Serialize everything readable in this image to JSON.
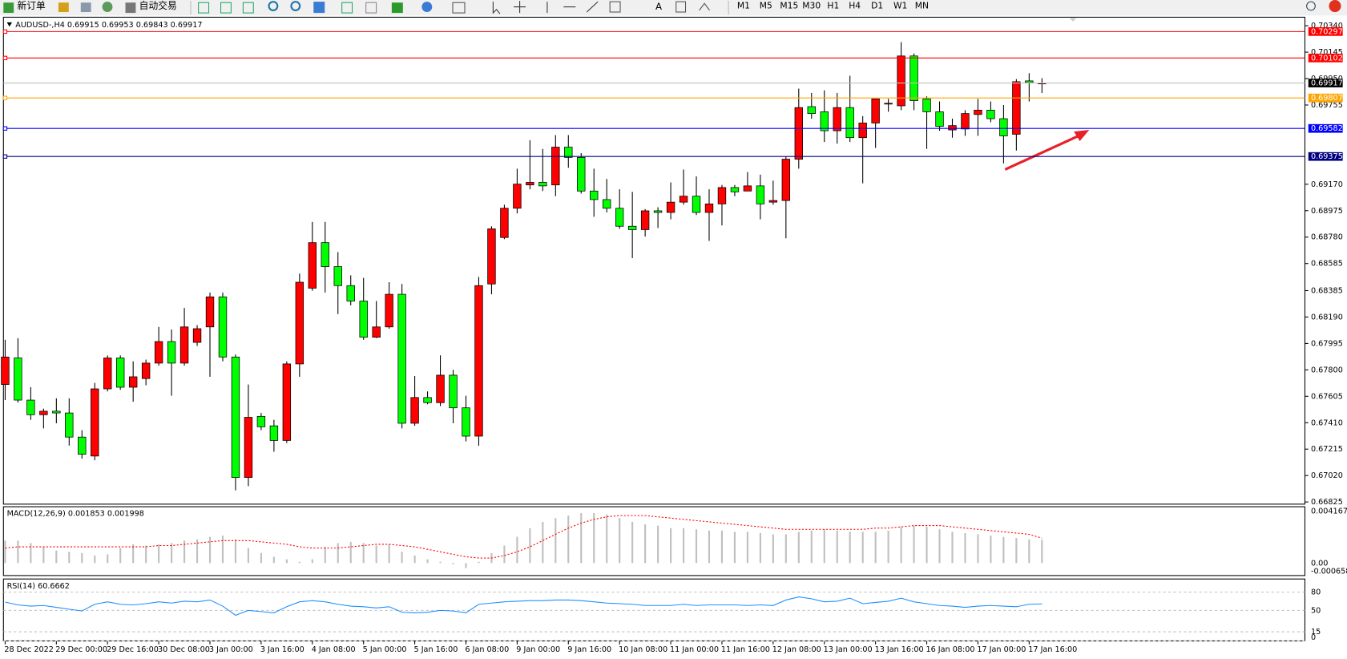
{
  "toolbar": {
    "new_order": "新订单",
    "auto_trading": "自动交易",
    "timeframes": [
      "M1",
      "M5",
      "M15",
      "M30",
      "H1",
      "H4",
      "D1",
      "W1",
      "MN"
    ]
  },
  "chart_data": [
    {
      "type": "candlestick",
      "title": "AUDUSD-,H4 0.69915 0.69953 0.69843 0.69917",
      "categories": [
        "28 Dec 2022",
        null,
        null,
        null,
        "29 Dec 00:00",
        null,
        null,
        null,
        "29 Dec 16:00",
        null,
        null,
        null,
        "30 Dec 08:00",
        null,
        null,
        null,
        "3 Jan 00:00",
        null,
        null,
        null,
        "3 Jan 16:00",
        null,
        null,
        null,
        "4 Jan 08:00",
        null,
        null,
        null,
        "5 Jan 00:00",
        null,
        null,
        null,
        "5 Jan 16:00",
        null,
        null,
        null,
        "6 Jan 08:00",
        null,
        null,
        null,
        "9 Jan 00:00",
        null,
        null,
        null,
        "9 Jan 16:00",
        null,
        null,
        null,
        "10 Jan 08:00",
        null,
        null,
        null,
        "11 Jan 00:00",
        null,
        null,
        null,
        "11 Jan 16:00",
        null,
        null,
        null,
        "12 Jan 08:00",
        null,
        null,
        null,
        "13 Jan 00:00",
        null,
        null,
        null,
        "13 Jan 16:00",
        null,
        null,
        null,
        "16 Jan 08:00",
        null,
        null,
        null,
        "17 Jan 00:00",
        null,
        null,
        null,
        "17 Jan 16:00",
        null
      ],
      "open": [
        0.67692,
        0.67888,
        0.67577,
        0.67469,
        0.67495,
        0.67482,
        0.67304,
        0.67164,
        0.6766,
        0.67888,
        0.67672,
        0.67736,
        0.6785,
        0.68009,
        0.6785,
        0.68003,
        0.68117,
        0.68339,
        0.67895,
        0.67006,
        0.67457,
        0.67387,
        0.67279,
        0.67844,
        0.68403,
        0.68739,
        0.68562,
        0.68422,
        0.68308,
        0.68041,
        0.68117,
        0.68358,
        0.67406,
        0.67596,
        0.67558,
        0.67761,
        0.6752,
        0.67311,
        0.68434,
        0.68777,
        0.68993,
        0.69165,
        0.69184,
        0.69165,
        0.69444,
        0.69368,
        0.6912,
        0.69057,
        0.68993,
        0.6886,
        0.68835,
        0.68974,
        0.68962,
        0.69038,
        0.69082,
        0.68962,
        0.69025,
        0.69146,
        0.6912,
        0.69158,
        0.69038,
        0.6905,
        0.69355,
        0.69743,
        0.69705,
        0.69565,
        0.69736,
        0.69514,
        0.69622,
        0.69762,
        0.69749,
        0.70117,
        0.698,
        0.69705,
        0.69571,
        0.69578,
        0.69685,
        0.69717,
        0.69654,
        0.69539,
        0.69933,
        0.69915
      ],
      "high": [
        0.68022,
        0.68034,
        0.67672,
        0.67514,
        0.6759,
        0.6759,
        0.67355,
        0.67704,
        0.67907,
        0.67907,
        0.67863,
        0.67876,
        0.68117,
        0.68098,
        0.68257,
        0.6813,
        0.68371,
        0.68371,
        0.67914,
        0.67692,
        0.67482,
        0.67431,
        0.67863,
        0.68511,
        0.68892,
        0.68892,
        0.68669,
        0.68498,
        0.68479,
        0.68308,
        0.68447,
        0.68434,
        0.67755,
        0.67641,
        0.67907,
        0.678,
        0.67609,
        0.68486,
        0.6886,
        0.69019,
        0.69285,
        0.69495,
        0.69431,
        0.69533,
        0.69533,
        0.694,
        0.69285,
        0.69209,
        0.69133,
        0.69114,
        0.68987,
        0.69,
        0.69184,
        0.69279,
        0.69228,
        0.69133,
        0.69165,
        0.69165,
        0.6926,
        0.69241,
        0.69197,
        0.69374,
        0.69876,
        0.69844,
        0.69863,
        0.69844,
        0.69971,
        0.69673,
        0.698,
        0.698,
        0.70219,
        0.70136,
        0.69819,
        0.69781,
        0.69654,
        0.69717,
        0.698,
        0.69781,
        0.69755,
        0.69946,
        0.6999,
        0.69953
      ],
      "low": [
        0.67577,
        0.67558,
        0.67431,
        0.67368,
        0.67406,
        0.67241,
        0.67145,
        0.67133,
        0.67641,
        0.67653,
        0.67565,
        0.67686,
        0.67831,
        0.67609,
        0.67831,
        0.67977,
        0.67749,
        0.67863,
        0.66911,
        0.66942,
        0.67355,
        0.67196,
        0.6726,
        0.67749,
        0.68384,
        0.68371,
        0.68212,
        0.68276,
        0.68022,
        0.68034,
        0.68104,
        0.67368,
        0.67387,
        0.67546,
        0.67533,
        0.67406,
        0.67272,
        0.67241,
        0.68358,
        0.68765,
        0.68955,
        0.69133,
        0.6912,
        0.69082,
        0.69292,
        0.69101,
        0.6893,
        0.68962,
        0.68841,
        0.68625,
        0.68784,
        0.68847,
        0.68911,
        0.69019,
        0.68943,
        0.68752,
        0.68866,
        0.69082,
        0.6912,
        0.68911,
        0.69019,
        0.68771,
        0.69285,
        0.69654,
        0.69482,
        0.6947,
        0.69482,
        0.69177,
        0.69438,
        0.69705,
        0.69717,
        0.69717,
        0.69431,
        0.69565,
        0.69514,
        0.69527,
        0.69527,
        0.69628,
        0.69324,
        0.69419,
        0.69781,
        0.69843
      ],
      "close": [
        0.67895,
        0.67577,
        0.67469,
        0.67495,
        0.67482,
        0.67304,
        0.67177,
        0.6766,
        0.67888,
        0.67672,
        0.67749,
        0.6785,
        0.68009,
        0.6785,
        0.68117,
        0.68104,
        0.68339,
        0.67895,
        0.67006,
        0.6745,
        0.6738,
        0.67279,
        0.67844,
        0.68447,
        0.68739,
        0.68562,
        0.68422,
        0.68308,
        0.68041,
        0.68117,
        0.68358,
        0.67406,
        0.67596,
        0.67558,
        0.67761,
        0.6752,
        0.67311,
        0.68422,
        0.68841,
        0.68993,
        0.69171,
        0.69184,
        0.69158,
        0.69444,
        0.69368,
        0.6912,
        0.69057,
        0.68993,
        0.6886,
        0.68835,
        0.68974,
        0.68962,
        0.69038,
        0.69082,
        0.68962,
        0.69025,
        0.69146,
        0.69114,
        0.69158,
        0.69025,
        0.6905,
        0.69355,
        0.69736,
        0.69692,
        0.69565,
        0.69736,
        0.69514,
        0.69622,
        0.698,
        0.69768,
        0.70117,
        0.69787,
        0.69705,
        0.69597,
        0.69603,
        0.69692,
        0.69717,
        0.69654,
        0.69527,
        0.69927,
        0.6992,
        0.69917
      ],
      "up_color": "#ff0000",
      "down_color": "#00ff00",
      "ylim": [
        0.66809,
        0.70403
      ],
      "yticks": [
        {
          "value": 0.7034,
          "label": "0.70340"
        },
        0.70145,
        {
          "value": 0.6995,
          "label": "0.69950"
        },
        0.69755,
        {
          "value": 0.6917,
          "label": "0.69170"
        },
        0.68975,
        {
          "value": 0.6878,
          "label": "0.68780"
        },
        0.68585,
        0.68385,
        {
          "value": 0.6819,
          "label": "0.68190"
        },
        0.67995,
        {
          "value": 0.678,
          "label": "0.67800"
        },
        0.67605,
        {
          "value": 0.6741,
          "label": "0.67410"
        },
        0.67215,
        {
          "value": 0.6702,
          "label": "0.67020"
        },
        0.66825
      ],
      "levels": [
        {
          "value": 0.70297,
          "color": "#ff0000"
        },
        {
          "value": 0.70102,
          "color": "#ff0000"
        },
        {
          "value": 0.69807,
          "color": "#ffa500"
        },
        {
          "value": 0.69582,
          "color": "#0000ff"
        },
        {
          "value": 0.69375,
          "color": "#000080"
        }
      ]
    },
    {
      "type": "macd",
      "title": "MACD(12,26,9) 0.001853 0.001998",
      "ylim": [
        -0.000658,
        0.004167
      ],
      "yticks": [
        0.004167,
        {
          "value": 0,
          "label": "0.00"
        },
        -0.000658
      ],
      "histogram": {
        "color": "#c0c0c0",
        "values": [
          0.0018,
          0.0018,
          0.0016,
          0.0013,
          0.001,
          0.0009,
          0.0008,
          0.0006,
          0.0007,
          0.0012,
          0.0015,
          0.0014,
          0.0015,
          0.0016,
          0.0018,
          0.0019,
          0.0021,
          0.0022,
          0.0019,
          0.0012,
          0.0008,
          0.0005,
          0.0003,
          0.0001,
          0.0003,
          0.0013,
          0.0016,
          0.0017,
          0.0016,
          0.0014,
          0.0015,
          0.0009,
          0.0006,
          0.0003,
          0.0001,
          -0.0001,
          -0.0004,
          0.0001,
          0.0008,
          0.0014,
          0.0021,
          0.0028,
          0.0033,
          0.0036,
          0.0038,
          0.004,
          0.004,
          0.0039,
          0.0036,
          0.0033,
          0.0031,
          0.003,
          0.0028,
          0.0028,
          0.0027,
          0.0026,
          0.0026,
          0.0025,
          0.0025,
          0.0024,
          0.0023,
          0.0023,
          0.0025,
          0.0026,
          0.0027,
          0.0026,
          0.0025,
          0.0025,
          0.0025,
          0.0026,
          0.0029,
          0.003,
          0.0029,
          0.0027,
          0.0025,
          0.0024,
          0.0023,
          0.0022,
          0.0021,
          0.002,
          0.0019,
          0.001853
        ]
      },
      "signal": {
        "color": "#ff0000",
        "values": [
          0.0012,
          0.0013,
          0.0013,
          0.0013,
          0.0013,
          0.0013,
          0.0013,
          0.0013,
          0.0013,
          0.0013,
          0.0013,
          0.0013,
          0.0014,
          0.0014,
          0.0015,
          0.0016,
          0.0017,
          0.0018,
          0.0018,
          0.0018,
          0.0017,
          0.0016,
          0.0015,
          0.0013,
          0.0012,
          0.0012,
          0.0012,
          0.0013,
          0.0014,
          0.0015,
          0.0015,
          0.0014,
          0.0013,
          0.0011,
          0.0009,
          0.0007,
          0.0005,
          0.0004,
          0.0004,
          0.0006,
          0.0009,
          0.0013,
          0.0018,
          0.0023,
          0.0028,
          0.0032,
          0.0035,
          0.0037,
          0.0038,
          0.0038,
          0.0038,
          0.0037,
          0.0036,
          0.0035,
          0.0034,
          0.0033,
          0.0032,
          0.0031,
          0.003,
          0.0029,
          0.0028,
          0.0027,
          0.0027,
          0.0027,
          0.0027,
          0.0027,
          0.0027,
          0.0027,
          0.0028,
          0.0028,
          0.0029,
          0.003,
          0.003,
          0.003,
          0.0029,
          0.0028,
          0.0027,
          0.0026,
          0.0025,
          0.0024,
          0.0023,
          0.001998
        ]
      }
    },
    {
      "type": "rsi",
      "title": "RSI(14) 60.6662",
      "color": "#1e90ff",
      "ylim": [
        0,
        100
      ],
      "yticks": [
        80,
        50,
        15,
        0
      ],
      "values": [
        63.6,
        59,
        57,
        58,
        55,
        52,
        49,
        60,
        64,
        60,
        59,
        61,
        64,
        62,
        65,
        64,
        67,
        57,
        42,
        50,
        48,
        46,
        56,
        64,
        66,
        64,
        60,
        57,
        56,
        54,
        56,
        47,
        46,
        47,
        50,
        49,
        46,
        60,
        62,
        64,
        65,
        66,
        66,
        67,
        67,
        66,
        64,
        62,
        61,
        60,
        58,
        58,
        58,
        60,
        58,
        59,
        59,
        59,
        58,
        59,
        58,
        67,
        72,
        69,
        64,
        65,
        70,
        61,
        63,
        65,
        70,
        64,
        61,
        58,
        57,
        55,
        57,
        58,
        57,
        56,
        60,
        60.6662
      ]
    }
  ]
}
